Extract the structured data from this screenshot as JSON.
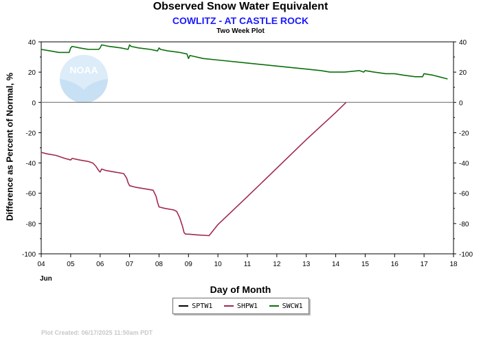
{
  "header": {
    "title": "Observed Snow Water Equivalent",
    "subtitle": "COWLITZ - AT CASTLE ROCK",
    "plot_type": "Two Week Plot"
  },
  "footer": {
    "created": "Plot Created: 06/17/2025 11:50am PDT"
  },
  "logo": {
    "text": "NOAA"
  },
  "colors": {
    "SPTW1": "#000000",
    "SHPW1": "#a0284b",
    "SWCW1": "#0a6e0a",
    "zero_line": "#808080",
    "frame": "#000000"
  },
  "chart_data": {
    "type": "line",
    "title": "Observed Snow Water Equivalent",
    "xlabel": "Day of Month",
    "ylabel": "Difference as Percent of Normal, %",
    "month_label": "Jun",
    "xlim": [
      4,
      18
    ],
    "ylim": [
      -100,
      40
    ],
    "xticks": [
      "04",
      "05",
      "06",
      "07",
      "08",
      "09",
      "10",
      "11",
      "12",
      "13",
      "14",
      "15",
      "16",
      "17",
      "18"
    ],
    "yticks": [
      -100,
      -80,
      -60,
      -40,
      -20,
      0,
      20,
      40
    ],
    "right_axis": true,
    "grid": false,
    "legend_position": "bottom-center",
    "legend": [
      "SPTW1",
      "SHPW1",
      "SWCW1"
    ],
    "series": [
      {
        "name": "SPTW1",
        "x": [],
        "y": []
      },
      {
        "name": "SHPW1",
        "x": [
          4.0,
          4.2,
          4.5,
          4.8,
          5.0,
          5.05,
          5.3,
          5.6,
          5.75,
          5.85,
          5.95,
          6.0,
          6.05,
          6.2,
          6.5,
          6.8,
          6.9,
          6.95,
          7.0,
          7.2,
          7.5,
          7.8,
          7.9,
          7.95,
          8.0,
          8.2,
          8.5,
          8.6,
          8.7,
          8.8,
          8.85,
          8.9,
          9.0,
          9.3,
          9.7,
          10.0,
          11.0,
          12.0,
          13.0,
          14.0,
          14.35
        ],
        "y": [
          -33,
          -34,
          -35,
          -37,
          -38,
          -37,
          -38,
          -39,
          -40,
          -42,
          -45,
          -46,
          -44,
          -45,
          -46,
          -47,
          -50,
          -53,
          -55,
          -56,
          -57,
          -58,
          -62,
          -66,
          -69,
          -70,
          -71,
          -72,
          -76,
          -82,
          -86,
          -87,
          -87,
          -87.5,
          -88,
          -80.7,
          -62.2,
          -43.4,
          -24.6,
          -6.6,
          0
        ]
      },
      {
        "name": "SWCW1",
        "x": [
          4.0,
          4.3,
          4.6,
          4.95,
          5.0,
          5.05,
          5.3,
          5.6,
          5.95,
          6.0,
          6.05,
          6.3,
          6.7,
          6.95,
          7.0,
          7.05,
          7.3,
          7.7,
          7.95,
          8.0,
          8.05,
          8.3,
          8.7,
          8.95,
          9.0,
          9.05,
          9.5,
          10.0,
          11.0,
          12.0,
          13.0,
          13.5,
          13.8,
          14.3,
          14.8,
          14.95,
          15.0,
          15.3,
          15.7,
          15.95,
          16.0,
          16.3,
          16.7,
          16.95,
          17.0,
          17.3,
          17.7,
          17.8
        ],
        "y": [
          35,
          34,
          33,
          33,
          36,
          37,
          36,
          35,
          35,
          36,
          38,
          37,
          36,
          35,
          38,
          37,
          36,
          35,
          34,
          36,
          35,
          34,
          33,
          32,
          29,
          31,
          29,
          28,
          26,
          24,
          22,
          21,
          20,
          20,
          21,
          20,
          21,
          20,
          19,
          19,
          19,
          18,
          17,
          17,
          19,
          18,
          16,
          15.5
        ]
      }
    ]
  }
}
